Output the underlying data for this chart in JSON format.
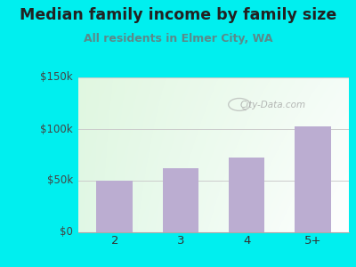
{
  "title": "Median family income by family size",
  "subtitle": "All residents in Elmer City, WA",
  "categories": [
    "2",
    "3",
    "4",
    "5+"
  ],
  "values": [
    50000,
    62000,
    72000,
    103000
  ],
  "bar_color": "#bbadd1",
  "ylim": [
    0,
    150000
  ],
  "yticks": [
    0,
    50000,
    100000,
    150000
  ],
  "ytick_labels": [
    "$0",
    "$50k",
    "$100k",
    "$150k"
  ],
  "outer_bg": "#00efef",
  "title_color": "#222222",
  "subtitle_color": "#5a8a8a",
  "watermark": "City-Data.com",
  "title_fontsize": 12.5,
  "subtitle_fontsize": 9.0,
  "gradient_topleft": [
    0.88,
    0.97,
    0.88
  ],
  "gradient_topright": [
    0.96,
    0.99,
    0.97
  ],
  "gradient_bottomleft": [
    0.88,
    0.97,
    0.9
  ],
  "gradient_bottomright": [
    1.0,
    1.0,
    1.0
  ]
}
